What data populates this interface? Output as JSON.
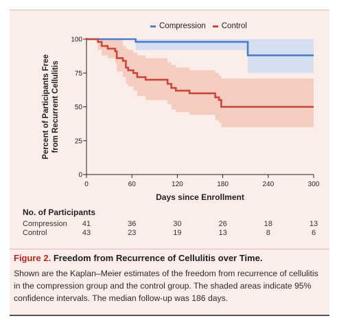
{
  "chart_data": {
    "type": "line",
    "step": true,
    "xlabel": "Days since Enrollment",
    "ylabel_line1": "Percent of Participants Free",
    "ylabel_line2": "from Recurrent Cellulitis",
    "xlim": [
      0,
      300
    ],
    "ylim": [
      0,
      100
    ],
    "xticks": [
      0,
      60,
      120,
      180,
      240,
      300
    ],
    "yticks": [
      0,
      25,
      50,
      75,
      100
    ],
    "legend_position": "top-center",
    "series": [
      {
        "name": "Compression",
        "color": "#4a7cc7",
        "band_color": "#d3ddf1",
        "x": [
          0,
          65,
          210,
          213,
          300
        ],
        "y": [
          100,
          98,
          98,
          88,
          88
        ],
        "ci_upper": [
          100,
          100,
          100,
          100,
          100
        ],
        "ci_lower": [
          100,
          92,
          92,
          75,
          75
        ]
      },
      {
        "name": "Control",
        "color": "#c8463a",
        "band_color": "#f4c9bb",
        "x": [
          0,
          15,
          20,
          28,
          38,
          40,
          48,
          52,
          55,
          62,
          67,
          78,
          102,
          107,
          112,
          118,
          128,
          136,
          148,
          170,
          175,
          178,
          300
        ],
        "y": [
          100,
          98,
          95,
          93,
          91,
          86,
          84,
          79,
          77,
          75,
          72,
          70,
          70,
          67,
          64,
          62,
          62,
          60,
          60,
          57,
          55,
          50,
          50
        ],
        "ci_upper": [
          100,
          100,
          100,
          100,
          100,
          100,
          95,
          93,
          92,
          90,
          88,
          86,
          86,
          83,
          81,
          79,
          79,
          77,
          77,
          75,
          73,
          71,
          71
        ],
        "ci_lower": [
          100,
          92,
          88,
          86,
          82,
          76,
          72,
          67,
          65,
          62,
          58,
          55,
          55,
          52,
          48,
          46,
          46,
          44,
          44,
          40,
          38,
          35,
          35
        ]
      }
    ]
  },
  "risk_table": {
    "title": "No. of Participants",
    "days": [
      0,
      60,
      120,
      180,
      240,
      300
    ],
    "rows": [
      {
        "label": "Compression",
        "values": [
          "41",
          "36",
          "30",
          "26",
          "18",
          "13"
        ]
      },
      {
        "label": "Control",
        "values": [
          "43",
          "23",
          "19",
          "13",
          "8",
          "6"
        ]
      }
    ]
  },
  "caption": {
    "figure_label": "Figure 2.",
    "title": "Freedom from Recurrence of Cellulitis over Time.",
    "body": "Shown are the Kaplan–Meier estimates of the freedom from recurrence of cellulitis in the compression group and the control group. The shaded areas indicate 95% confidence intervals. The median follow-up was 186 days."
  }
}
